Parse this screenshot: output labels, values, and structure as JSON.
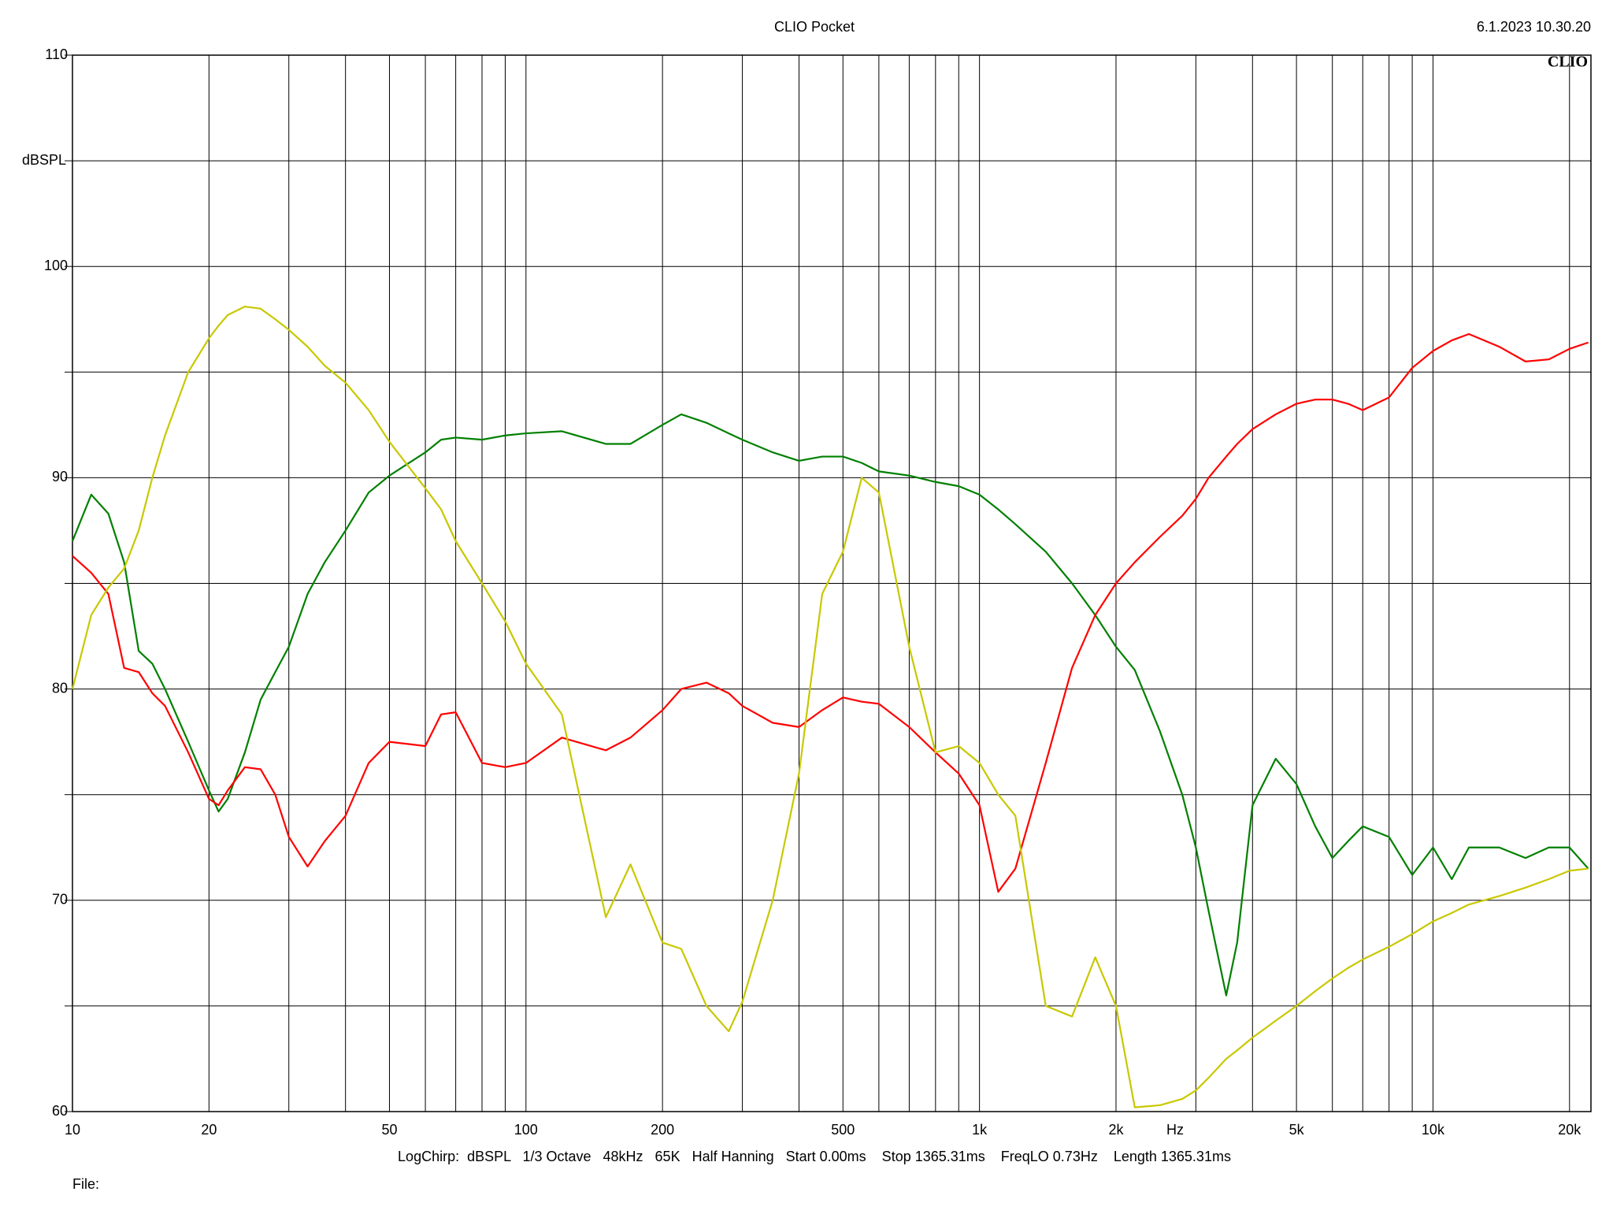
{
  "chart_data": {
    "type": "line",
    "title": "CLIO Pocket",
    "date": "6.1.2023 10.30.20",
    "logo": "CLIO",
    "ylabel": "dBSPL",
    "xlabel": "Hz",
    "footer": "LogChirp:  dBSPL   1/3 Octave   48kHz   65K   Half Hanning   Start 0.00ms    Stop 1365.31ms    FreqLO 0.73Hz    Length 1365.31ms",
    "file_label": "File:",
    "xscale": "log",
    "xlim": [
      10,
      22300
    ],
    "ylim": [
      60,
      110
    ],
    "xticks": [
      10,
      20,
      50,
      100,
      200,
      500,
      {
        "value": 1000,
        "label": "1k"
      },
      {
        "value": 2000,
        "label": "2k"
      },
      {
        "value": 5000,
        "label": "5k"
      },
      {
        "value": 10000,
        "label": "10k"
      },
      {
        "value": 20000,
        "label": "20k"
      }
    ],
    "xgrid_minor": [
      30,
      40,
      60,
      70,
      80,
      90,
      300,
      400,
      600,
      700,
      800,
      900,
      3000,
      4000,
      6000,
      7000,
      8000,
      9000
    ],
    "yticks": [
      60,
      70,
      80,
      90,
      100,
      110
    ],
    "ygrid_minor": [
      65,
      75,
      85,
      95,
      105
    ],
    "grid": true,
    "x": [
      10,
      11,
      12,
      13,
      14,
      15,
      16,
      18,
      20,
      21,
      22,
      24,
      26,
      28,
      30,
      33,
      36,
      40,
      45,
      50,
      60,
      65,
      70,
      80,
      90,
      100,
      120,
      150,
      170,
      200,
      220,
      250,
      280,
      300,
      350,
      400,
      450,
      500,
      550,
      600,
      700,
      800,
      900,
      1000,
      1100,
      1200,
      1400,
      1600,
      1800,
      2000,
      2200,
      2500,
      2800,
      3000,
      3200,
      3500,
      3700,
      4000,
      4500,
      5000,
      5500,
      6000,
      6500,
      7000,
      8000,
      9000,
      10000,
      11000,
      12000,
      14000,
      16000,
      18000,
      20000,
      22000
    ],
    "series": [
      {
        "color": "#008000",
        "values": [
          87,
          89.2,
          88.3,
          86,
          81.8,
          81.2,
          80,
          77.5,
          75.2,
          74.2,
          74.8,
          77,
          79.5,
          80.8,
          82,
          84.5,
          86,
          87.5,
          89.3,
          90.1,
          91.2,
          91.8,
          91.9,
          91.8,
          92,
          92.1,
          92.2,
          91.6,
          91.6,
          92.5,
          93,
          92.6,
          92.1,
          91.8,
          91.2,
          90.8,
          91,
          91,
          90.7,
          90.3,
          90.1,
          89.8,
          89.6,
          89.2,
          88.5,
          87.8,
          86.5,
          85,
          83.5,
          82,
          80.9,
          78,
          75,
          72.5,
          69.5,
          65.5,
          68,
          74.5,
          76.7,
          75.5,
          73.5,
          72,
          72.8,
          73.5,
          73,
          71.2,
          72.5,
          71,
          72.5,
          72.5,
          72,
          72.5,
          72.5,
          71.5
        ]
      },
      {
        "color": "#ff0000",
        "values": [
          86.3,
          85.5,
          84.5,
          81,
          80.8,
          79.8,
          79.2,
          77,
          74.8,
          74.5,
          75.2,
          76.3,
          76.2,
          75,
          73,
          71.6,
          72.8,
          74,
          76.5,
          77.5,
          77.3,
          78.8,
          78.9,
          76.5,
          76.3,
          76.5,
          77.7,
          77.1,
          77.7,
          79,
          80,
          80.3,
          79.8,
          79.2,
          78.4,
          78.2,
          79,
          79.6,
          79.4,
          79.3,
          78.2,
          77,
          76,
          74.5,
          70.4,
          71.5,
          76.5,
          81,
          83.5,
          85,
          86,
          87.2,
          88.2,
          89,
          90,
          91,
          91.6,
          92.3,
          93,
          93.5,
          93.7,
          93.7,
          93.5,
          93.2,
          93.8,
          95.2,
          96,
          96.5,
          96.8,
          96.2,
          95.5,
          95.6,
          96.1,
          96.4
        ]
      },
      {
        "color": "#c8c800",
        "values": [
          80,
          83.5,
          84.8,
          85.7,
          87.5,
          90,
          92,
          95,
          96.6,
          97.2,
          97.7,
          98.1,
          98,
          97.5,
          97,
          96.2,
          95.3,
          94.5,
          93.2,
          91.7,
          89.5,
          88.5,
          87,
          85,
          83.2,
          81.2,
          78.8,
          69.2,
          71.7,
          68,
          67.7,
          65,
          63.8,
          65.2,
          70,
          76,
          84.5,
          86.5,
          90,
          89.3,
          82,
          77,
          77.3,
          76.5,
          75,
          74,
          65,
          64.5,
          67.3,
          65,
          60.2,
          60.3,
          60.6,
          61,
          61.6,
          62.5,
          62.9,
          63.5,
          64.3,
          65,
          65.7,
          66.3,
          66.8,
          67.2,
          67.8,
          68.4,
          69,
          69.4,
          69.8,
          70.2,
          70.6,
          71,
          71.4,
          71.5
        ]
      }
    ]
  }
}
